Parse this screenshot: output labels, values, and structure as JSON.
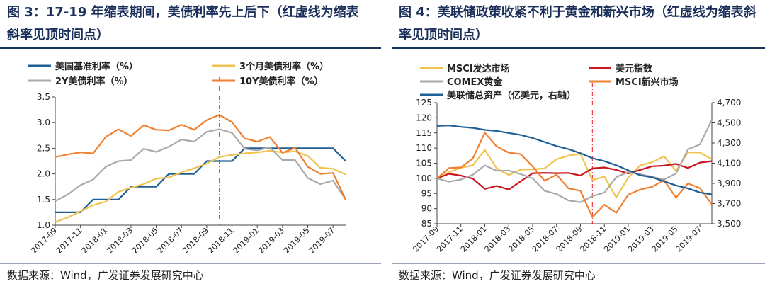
{
  "chart_data": [
    {
      "type": "line",
      "title": "图 3：17-19 年缩表期间，美债利率先上后下（红虚线为缩表斜率见顶时间点）",
      "source": "数据来源：Wind，广发证券发展研究中心",
      "categories": [
        "2017-09",
        "2017-10",
        "2017-11",
        "2017-12",
        "2018-01",
        "2018-02",
        "2018-03",
        "2018-04",
        "2018-05",
        "2018-06",
        "2018-07",
        "2018-08",
        "2018-09",
        "2018-10",
        "2018-11",
        "2018-12",
        "2019-01",
        "2019-02",
        "2019-03",
        "2019-04",
        "2019-05",
        "2019-06",
        "2019-07",
        "2019-08"
      ],
      "x_tick_labels": [
        "2017-09",
        "2017-11",
        "2018-01",
        "2018-03",
        "2018-05",
        "2018-07",
        "2018-09",
        "2018-11",
        "2019-01",
        "2019-03",
        "2019-05",
        "2019-07"
      ],
      "ylim": [
        1.0,
        3.5
      ],
      "y_ticks": [
        "1.0",
        "1.5",
        "2.0",
        "2.5",
        "3.0",
        "3.5"
      ],
      "marker": {
        "label": "2018-10",
        "color": "#e8141b",
        "style": "dash-dot"
      },
      "series": [
        {
          "name": "美国基准利率（%）",
          "color": "#1f5f96",
          "values": [
            1.25,
            1.25,
            1.25,
            1.5,
            1.5,
            1.5,
            1.75,
            1.75,
            1.75,
            2.0,
            2.0,
            2.0,
            2.25,
            2.25,
            2.25,
            2.5,
            2.5,
            2.5,
            2.5,
            2.5,
            2.5,
            2.5,
            2.5,
            2.25
          ]
        },
        {
          "name": "3个月美债利率（%）",
          "color": "#f0c34e",
          "values": [
            1.06,
            1.15,
            1.27,
            1.39,
            1.46,
            1.65,
            1.73,
            1.8,
            1.91,
            1.93,
            2.03,
            2.11,
            2.2,
            2.33,
            2.37,
            2.4,
            2.42,
            2.45,
            2.42,
            2.44,
            2.35,
            2.12,
            2.1,
            1.99
          ]
        },
        {
          "name": "2Y美债利率（%）",
          "color": "#aaaaaa",
          "values": [
            1.47,
            1.6,
            1.78,
            1.89,
            2.14,
            2.25,
            2.27,
            2.49,
            2.43,
            2.53,
            2.67,
            2.63,
            2.82,
            2.87,
            2.8,
            2.49,
            2.46,
            2.52,
            2.27,
            2.27,
            1.92,
            1.8,
            1.87,
            1.5
          ]
        },
        {
          "name": "10Y美债利率（%）",
          "color": "#f08030",
          "values": [
            2.33,
            2.38,
            2.42,
            2.4,
            2.72,
            2.87,
            2.74,
            2.95,
            2.86,
            2.85,
            2.96,
            2.86,
            3.05,
            3.15,
            3.01,
            2.69,
            2.63,
            2.72,
            2.41,
            2.51,
            2.14,
            2.0,
            2.02,
            1.5
          ]
        }
      ]
    },
    {
      "type": "line",
      "title": "图 4：美联储政策收紧不利于黄金和新兴市场（红虚线为缩表斜率见顶时间点）",
      "source": "数据来源：Wind，广发证券发展研究中心",
      "categories": [
        "2017-09",
        "2017-10",
        "2017-11",
        "2017-12",
        "2018-01",
        "2018-02",
        "2018-03",
        "2018-04",
        "2018-05",
        "2018-06",
        "2018-07",
        "2018-08",
        "2018-09",
        "2018-10",
        "2018-11",
        "2018-12",
        "2019-01",
        "2019-02",
        "2019-03",
        "2019-04",
        "2019-05",
        "2019-06",
        "2019-07",
        "2019-08"
      ],
      "x_tick_labels": [
        "2017-09",
        "2017-11",
        "2018-01",
        "2018-03",
        "2018-05",
        "2018-07",
        "2018-09",
        "2018-11",
        "2019-01",
        "2019-03",
        "2019-05",
        "2019-07"
      ],
      "ylim": [
        85,
        125
      ],
      "y_ticks": [
        "85",
        "90",
        "95",
        "100",
        "105",
        "110",
        "115",
        "120",
        "125"
      ],
      "y2lim": [
        3500,
        4700
      ],
      "y2_ticks": [
        "3,500",
        "3,700",
        "3,900",
        "4,100",
        "4,300",
        "4,500",
        "4,700"
      ],
      "marker": {
        "label": "2018-10",
        "color": "#e8141b",
        "style": "dash-dot"
      },
      "series": [
        {
          "name": "MSCI发达市场",
          "color": "#f0c34e",
          "axis": "left",
          "values": [
            100,
            102,
            103.5,
            104.3,
            109.4,
            103.3,
            101.1,
            102.9,
            103,
            103.3,
            106.3,
            107.5,
            108.1,
            99.4,
            100.6,
            93.7,
            100.2,
            104.3,
            105.3,
            107.3,
            102.4,
            108.6,
            108.5,
            106.3
          ]
        },
        {
          "name": "美元指数",
          "color": "#c8171e",
          "axis": "left",
          "values": [
            100,
            101.5,
            100.9,
            99.9,
            96.5,
            97.5,
            96.3,
            99,
            101.7,
            101.8,
            101.7,
            101.8,
            100.9,
            103.3,
            103.6,
            102.8,
            101.6,
            102.8,
            104,
            104.2,
            104.8,
            103.4,
            105.2,
            105.7
          ]
        },
        {
          "name": "COMEX黄金",
          "color": "#aaaaaa",
          "axis": "left",
          "values": [
            100,
            98.9,
            99.6,
            101.2,
            104.3,
            102.5,
            102.6,
            101.4,
            100,
            95.9,
            94.8,
            92.7,
            92.1,
            94.1,
            95.3,
            100.4,
            102.1,
            101.4,
            100.5,
            99.6,
            101.6,
            109.6,
            111.2,
            119.3
          ]
        },
        {
          "name": "MSCI新兴市场",
          "color": "#f08030",
          "axis": "left",
          "values": [
            100,
            103.4,
            103.6,
            106.6,
            115.1,
            110.5,
            108.5,
            108,
            103.9,
            99.2,
            101.2,
            96.7,
            95.9,
            87.2,
            91.3,
            88.6,
            94.6,
            96.3,
            97.2,
            99.4,
            93.6,
            98.3,
            96.8,
            91.4
          ]
        },
        {
          "name": "美联储总资产（亿美元，右轴）",
          "color": "#1f5f96",
          "axis": "right",
          "values": [
            4470,
            4475,
            4460,
            4450,
            4430,
            4420,
            4400,
            4380,
            4350,
            4310,
            4270,
            4240,
            4200,
            4150,
            4120,
            4080,
            4030,
            3980,
            3960,
            3920,
            3880,
            3850,
            3810,
            3790
          ]
        }
      ]
    }
  ]
}
